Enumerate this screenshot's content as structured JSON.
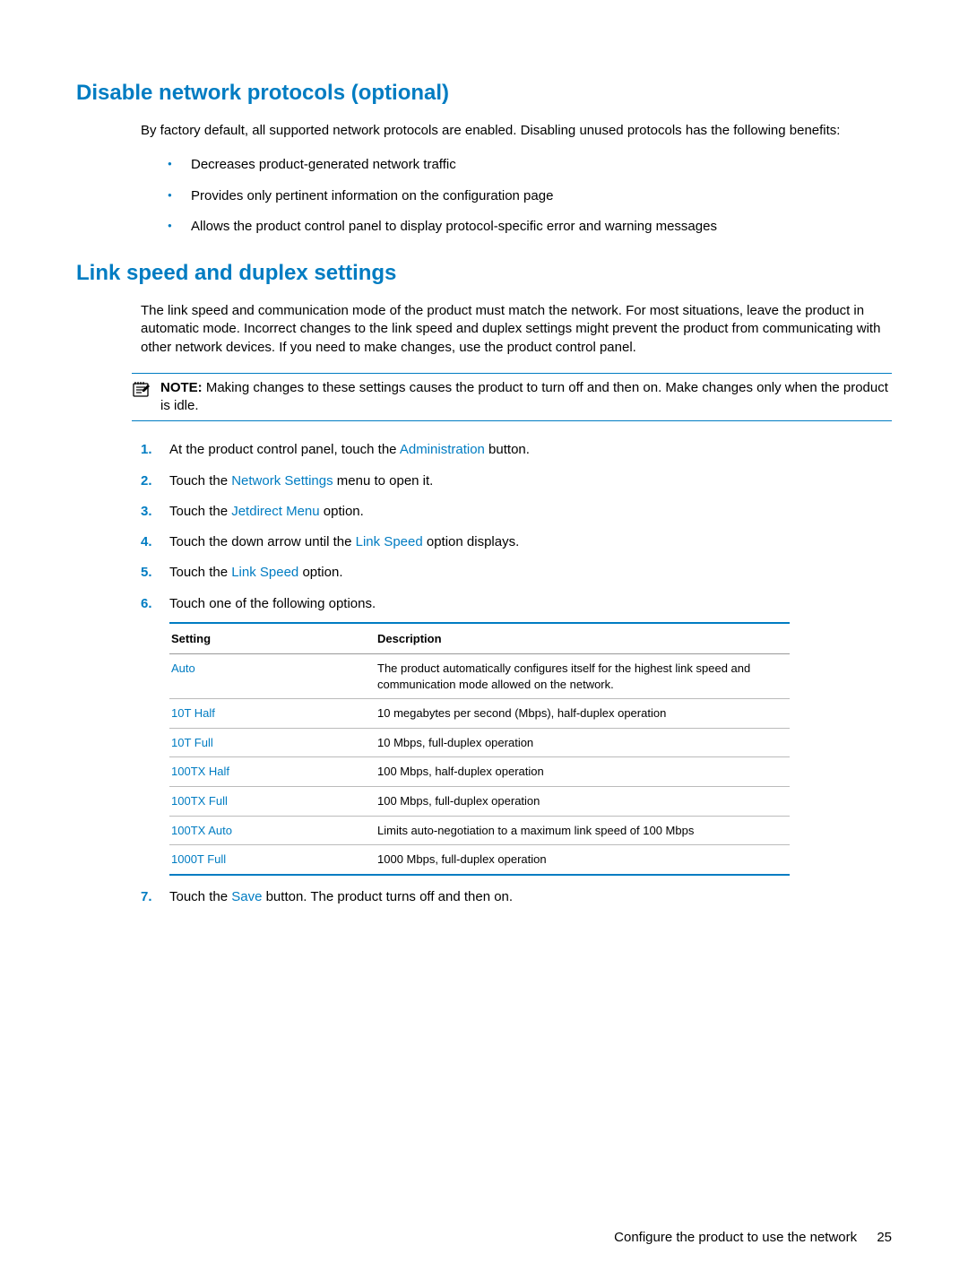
{
  "colors": {
    "accent": "#007cc2",
    "text": "#000000",
    "background": "#ffffff",
    "table_border": "#bbbbbb"
  },
  "section1": {
    "heading": "Disable network protocols (optional)",
    "intro": "By factory default, all supported network protocols are enabled. Disabling unused protocols has the following benefits:",
    "bullets": [
      "Decreases product-generated network traffic",
      "Provides only pertinent information on the configuration page",
      "Allows the product control panel to display protocol-specific error and warning messages"
    ]
  },
  "section2": {
    "heading": "Link speed and duplex settings",
    "intro": "The link speed and communication mode of the product must match the network. For most situations, leave the product in automatic mode. Incorrect changes to the link speed and duplex settings might prevent the product from communicating with other network devices. If you need to make changes, use the product control panel.",
    "note_label": "NOTE:",
    "note_text": "Making changes to these settings causes the product to turn off and then on. Make changes only when the product is idle.",
    "steps": {
      "s1_a": "At the product control panel, touch the ",
      "s1_link": "Administration",
      "s1_b": " button.",
      "s2_a": "Touch the ",
      "s2_link": "Network Settings",
      "s2_b": " menu to open it.",
      "s3_a": "Touch the ",
      "s3_link": "Jetdirect Menu",
      "s3_b": " option.",
      "s4_a": "Touch the down arrow until the ",
      "s4_link": "Link Speed",
      "s4_b": " option displays.",
      "s5_a": "Touch the ",
      "s5_link": "Link Speed",
      "s5_b": " option.",
      "s6": "Touch one of the following options.",
      "s7_a": "Touch the ",
      "s7_link": "Save",
      "s7_b": " button. The product turns off and then on."
    },
    "table": {
      "col1": "Setting",
      "col2": "Description",
      "rows": [
        {
          "setting": "Auto",
          "desc": "The product automatically configures itself for the highest link speed and communication mode allowed on the network."
        },
        {
          "setting": "10T Half",
          "desc": "10 megabytes per second (Mbps), half-duplex operation"
        },
        {
          "setting": "10T Full",
          "desc": "10 Mbps, full-duplex operation"
        },
        {
          "setting": "100TX Half",
          "desc": "100 Mbps, half-duplex operation"
        },
        {
          "setting": "100TX Full",
          "desc": "100 Mbps, full-duplex operation"
        },
        {
          "setting": "100TX Auto",
          "desc": "Limits auto-negotiation to a maximum link speed of 100 Mbps"
        },
        {
          "setting": "1000T Full",
          "desc": "1000 Mbps, full-duplex operation"
        }
      ]
    }
  },
  "footer": {
    "text": "Configure the product to use the network",
    "page": "25"
  }
}
